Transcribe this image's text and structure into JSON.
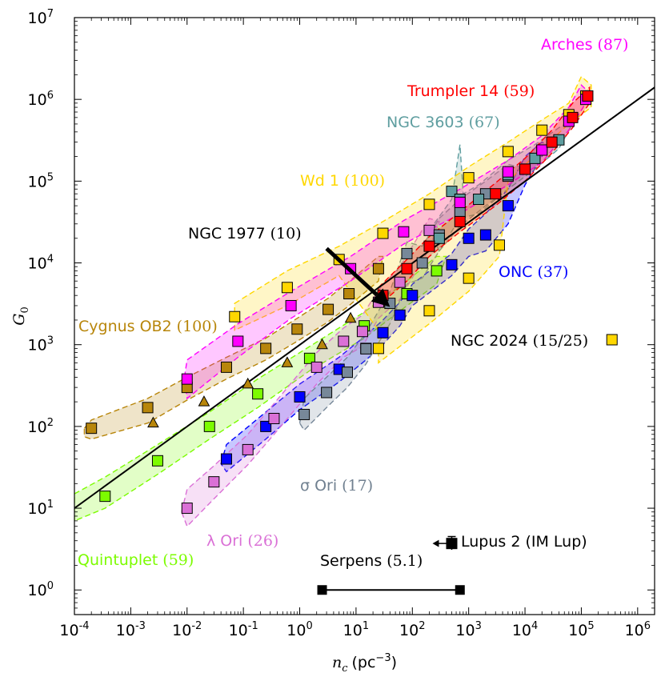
{
  "chart_data": {
    "type": "scatter",
    "x_axis": {
      "label_symbol": "n",
      "label_subscript": "c",
      "label_unit": "(pc",
      "label_unit_sup": "−3",
      "label_unit_close": ")",
      "scale": "log",
      "lim": [
        0.0001,
        2000000
      ],
      "ticks": [
        {
          "value": 0.0001,
          "base": "10",
          "exp": "-4"
        },
        {
          "value": 0.001,
          "base": "10",
          "exp": "-3"
        },
        {
          "value": 0.01,
          "base": "10",
          "exp": "-2"
        },
        {
          "value": 0.1,
          "base": "10",
          "exp": "-1"
        },
        {
          "value": 1,
          "base": "10",
          "exp": "0"
        },
        {
          "value": 10,
          "base": "10",
          "exp": "1"
        },
        {
          "value": 100,
          "base": "10",
          "exp": "2"
        },
        {
          "value": 1000,
          "base": "10",
          "exp": "3"
        },
        {
          "value": 10000,
          "base": "10",
          "exp": "4"
        },
        {
          "value": 100000,
          "base": "10",
          "exp": "5"
        },
        {
          "value": 1000000,
          "base": "10",
          "exp": "6"
        }
      ]
    },
    "y_axis": {
      "label_symbol": "G",
      "label_subscript": "0",
      "scale": "log",
      "lim": [
        0.5,
        10000000
      ],
      "ticks": [
        {
          "value": 1,
          "base": "10",
          "exp": "0"
        },
        {
          "value": 10,
          "base": "10",
          "exp": "1"
        },
        {
          "value": 100,
          "base": "10",
          "exp": "2"
        },
        {
          "value": 1000,
          "base": "10",
          "exp": "3"
        },
        {
          "value": 10000,
          "base": "10",
          "exp": "4"
        },
        {
          "value": 100000,
          "base": "10",
          "exp": "5"
        },
        {
          "value": 1000000,
          "base": "10",
          "exp": "6"
        },
        {
          "value": 10000000,
          "base": "10",
          "exp": "7"
        }
      ]
    },
    "fit_line": {
      "x": [
        0.0001,
        2000000
      ],
      "y": [
        10,
        1400000
      ],
      "color": "#000000"
    },
    "series": [
      {
        "name": "Cygnus OB2",
        "count": "(100)",
        "color": "#b8860b",
        "text_color": "#b8860b",
        "x": [
          0.0002,
          0.002,
          0.01,
          0.05,
          0.25,
          0.9,
          3.2,
          7.5,
          25
        ],
        "y": [
          95,
          170,
          300,
          530,
          900,
          1550,
          2700,
          4200,
          8500
        ],
        "band": {
          "x": [
            0.00015,
            0.0002,
            0.002,
            0.01,
            0.05,
            0.25,
            0.9,
            3.2,
            7.5,
            25,
            30,
            25,
            7.5,
            3.2,
            0.9,
            0.25,
            0.05,
            0.01,
            0.002,
            0.0002,
            0.00015
          ],
          "y": [
            95,
            120,
            220,
            400,
            700,
            1200,
            2100,
            3700,
            5900,
            12000,
            12000,
            6000,
            3000,
            1900,
            1100,
            650,
            380,
            210,
            110,
            70,
            75
          ]
        }
      },
      {
        "name": "Cygnus OB2 (triangles)",
        "marker": "triangle",
        "color": "#b8860b",
        "x": [
          0.0025,
          0.02,
          0.12,
          0.6,
          2.5,
          8,
          30
        ],
        "y": [
          110,
          200,
          330,
          600,
          1000,
          2100,
          3300
        ]
      },
      {
        "name": "Quintuplet",
        "count": "(59)",
        "color": "#7cfc00",
        "text_color": "#7cfc00",
        "x": [
          0.00035,
          0.003,
          0.025,
          0.18,
          1.5,
          14,
          80,
          270
        ],
        "y": [
          14,
          38,
          100,
          250,
          680,
          1700,
          4200,
          8000
        ],
        "band": {
          "x": [
            0.0001,
            0.00035,
            0.003,
            0.025,
            0.18,
            1.5,
            14,
            80,
            270,
            400,
            270,
            80,
            14,
            1.5,
            0.18,
            0.025,
            0.003,
            0.00035,
            0.0001
          ],
          "y": [
            15,
            24,
            60,
            150,
            380,
            950,
            2500,
            6000,
            12000,
            12000,
            5500,
            3000,
            1200,
            480,
            170,
            70,
            26,
            10,
            7
          ]
        }
      },
      {
        "name": "ONC",
        "count": "(37)",
        "color": "#0000ff",
        "text_color": "#0000ff",
        "x": [
          0.05,
          0.25,
          1,
          5,
          15,
          30,
          60,
          100,
          500,
          1000,
          2000,
          5000,
          10000,
          20000
        ],
        "y": [
          40,
          100,
          230,
          500,
          900,
          1400,
          2300,
          4000,
          9500,
          20000,
          22000,
          50000,
          140000,
          240000
        ],
        "band": {
          "x": [
            0.04,
            0.05,
            0.25,
            1,
            5,
            15,
            30,
            60,
            100,
            500,
            1000,
            2000,
            5000,
            10000,
            20000,
            25000,
            20000,
            10000,
            5000,
            2000,
            1000,
            500,
            100,
            60,
            30,
            15,
            5,
            1,
            0.25,
            0.05
          ],
          "y": [
            35,
            60,
            150,
            330,
            700,
            1300,
            2000,
            3300,
            5500,
            13000,
            26000,
            40000,
            80000,
            200000,
            300000,
            280000,
            200000,
            90000,
            30000,
            14000,
            12000,
            7000,
            3000,
            1700,
            1000,
            650,
            350,
            160,
            70,
            28
          ]
        }
      },
      {
        "name": "λ Ori",
        "count": "(26)",
        "color": "#da70d6",
        "text_color": "#da70d6",
        "x": [
          0.01,
          0.03,
          0.12,
          0.35,
          2,
          6,
          13,
          25,
          60,
          200
        ],
        "y": [
          10,
          21,
          52,
          125,
          530,
          1100,
          1450,
          3300,
          5800,
          25000
        ],
        "band": {
          "x": [
            0.008,
            0.01,
            0.03,
            0.12,
            0.35,
            2,
            6,
            13,
            25,
            60,
            200,
            300,
            200,
            60,
            25,
            13,
            6,
            2,
            0.35,
            0.12,
            0.03,
            0.01
          ],
          "y": [
            9,
            17,
            33,
            80,
            190,
            800,
            1600,
            2300,
            4600,
            9000,
            35000,
            32000,
            15000,
            3600,
            2100,
            950,
            700,
            330,
            80,
            34,
            13,
            6
          ]
        }
      },
      {
        "name": "σ Ori",
        "count": "(17)",
        "color": "#778899",
        "text_color": "#708090",
        "x": [
          1.2,
          3,
          7,
          15,
          40,
          80,
          150,
          300,
          700,
          2000,
          5000
        ],
        "y": [
          140,
          260,
          460,
          890,
          3200,
          13000,
          10000,
          22000,
          42000,
          70000,
          115000
        ],
        "band": {
          "x": [
            1,
            1.2,
            3,
            7,
            15,
            40,
            80,
            150,
            300,
            700,
            2000,
            5000,
            8000,
            5000,
            2000,
            700,
            300,
            150,
            80,
            40,
            15,
            7,
            3,
            1.2
          ],
          "y": [
            110,
            220,
            400,
            700,
            1400,
            4500,
            18000,
            16000,
            35000,
            60000,
            100000,
            160000,
            150000,
            80000,
            50000,
            28000,
            14000,
            6500,
            5500,
            1800,
            580,
            300,
            170,
            90
          ]
        }
      },
      {
        "name": "NGC 3603",
        "count": "(67)",
        "color": "#5f9ea0",
        "text_color": "#5f9ea0",
        "x": [
          300,
          500,
          700,
          1500,
          5000,
          15000,
          40000
        ],
        "y": [
          20000,
          75000,
          60000,
          60000,
          120000,
          190000,
          320000
        ],
        "band": {
          "x": [
            200,
            500,
            700,
            800,
            1500,
            5000,
            15000,
            40000,
            80000,
            40000,
            15000,
            5000,
            1500,
            700,
            300
          ],
          "y": [
            25000,
            60000,
            280000,
            70000,
            90000,
            180000,
            280000,
            450000,
            600000,
            250000,
            140000,
            80000,
            40000,
            35000,
            14000
          ]
        }
      },
      {
        "name": "Wd 1",
        "count": "(100)",
        "color": "#ffd700",
        "text_color": "#ffd700",
        "x": [
          0.07,
          0.6,
          5,
          30,
          200,
          1000,
          5000,
          20000,
          60000,
          120000,
          25,
          200,
          1000,
          3500
        ],
        "y": [
          2200,
          5000,
          11000,
          23000,
          52000,
          110000,
          230000,
          420000,
          650000,
          1100000,
          900,
          2600,
          6500,
          16500
        ],
        "band": {
          "x": [
            0.07,
            0.6,
            5,
            30,
            200,
            1000,
            5000,
            20000,
            60000,
            100000,
            150000,
            150000,
            60000,
            20000,
            5000,
            3500,
            1000,
            200,
            25,
            25,
            5,
            0.6,
            0.07
          ],
          "y": [
            3200,
            8000,
            16000,
            32000,
            70000,
            150000,
            300000,
            560000,
            900000,
            1900000,
            1500000,
            800000,
            500000,
            250000,
            100000,
            12000,
            4500,
            1800,
            600,
            1500,
            7000,
            3000,
            1500
          ]
        }
      },
      {
        "name": "Arches",
        "count": "(87)",
        "color": "#ff00ff",
        "text_color": "#ff00ff",
        "x": [
          0.01,
          0.08,
          0.7,
          8,
          70,
          700,
          5000,
          20000,
          60000,
          120000
        ],
        "y": [
          380,
          1100,
          3000,
          8500,
          24000,
          55000,
          130000,
          240000,
          540000,
          1000000
        ],
        "band": {
          "x": [
            0.009,
            0.01,
            0.08,
            0.7,
            8,
            70,
            700,
            5000,
            20000,
            60000,
            100000,
            140000,
            120000,
            60000,
            20000,
            5000,
            700,
            70,
            8,
            0.7,
            0.08,
            0.01
          ],
          "y": [
            400,
            650,
            1800,
            4500,
            12000,
            33000,
            80000,
            180000,
            360000,
            800000,
            1500000,
            1200000,
            900000,
            420000,
            170000,
            90000,
            40000,
            17000,
            6000,
            2100,
            700,
            220
          ]
        }
      },
      {
        "name": "Trumpler 14",
        "count": "(59)",
        "color": "#ff0000",
        "text_color": "#ff0000",
        "x": [
          30,
          80,
          200,
          700,
          3000,
          10000,
          30000,
          70000,
          130000
        ],
        "y": [
          4000,
          8500,
          16000,
          32000,
          70000,
          140000,
          300000,
          600000,
          1100000
        ],
        "band": {
          "x": [
            25,
            80,
            200,
            700,
            3000,
            10000,
            30000,
            70000,
            140000,
            140000,
            70000,
            30000,
            10000,
            3000,
            700,
            200,
            80,
            25
          ],
          "y": [
            5000,
            11000,
            21000,
            42000,
            95000,
            190000,
            420000,
            900000,
            1400000,
            900000,
            450000,
            220000,
            100000,
            50000,
            24000,
            12000,
            6000,
            3000
          ]
        }
      }
    ],
    "single_points": [
      {
        "name": "NGC 2024",
        "count": "(15/25)",
        "x": 350000,
        "y": 1150,
        "color": "#ffd700",
        "text_color": "#000000"
      },
      {
        "name": "Lupus 2 (IM Lup)",
        "x": 500,
        "y": 3.7,
        "y_err_low": 3.1,
        "y_err_high": 4.5,
        "upper_limit_x": true,
        "color": "#000000",
        "text_color": "#000000"
      },
      {
        "name": "Serpens",
        "count": "(5.1)",
        "x_low": 2.5,
        "x_high": 700,
        "y": 1,
        "color": "#000000",
        "text_color": "#000000"
      }
    ],
    "annotations": [
      {
        "name": "NGC 1977",
        "count": "(10)",
        "arrow_from": [
          3,
          15000
        ],
        "arrow_to": [
          40,
          2900
        ],
        "color": "#000000"
      }
    ]
  }
}
